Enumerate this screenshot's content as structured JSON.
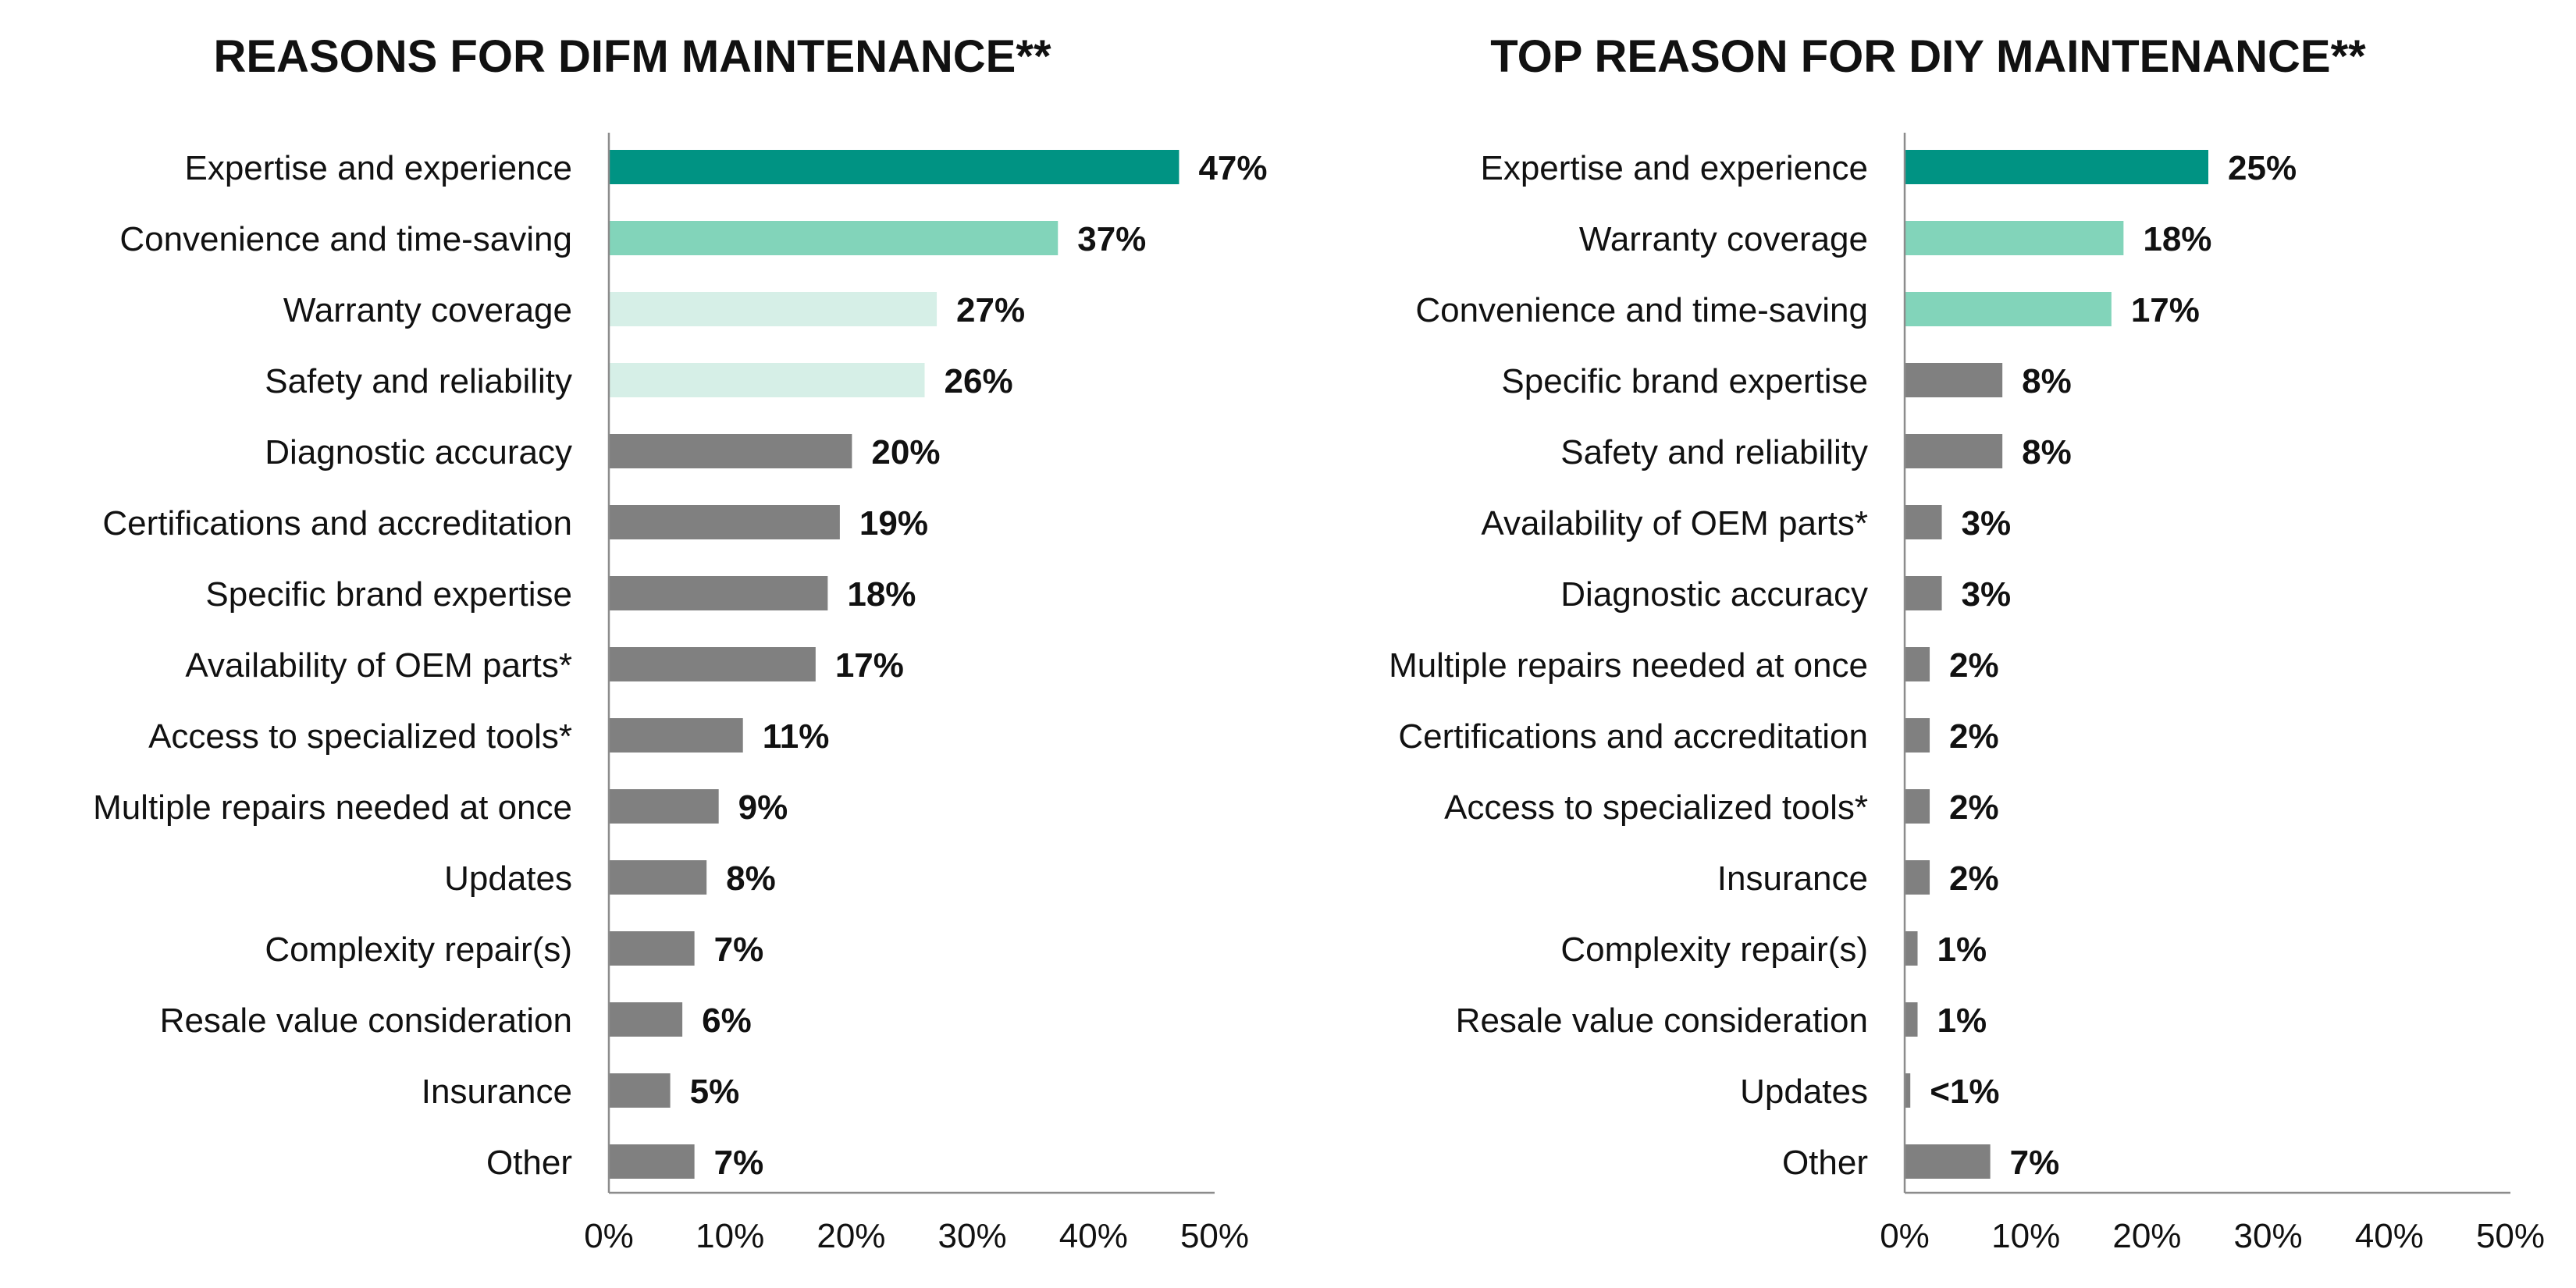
{
  "chart_data": [
    {
      "type": "bar",
      "orientation": "horizontal",
      "title": "REASONS FOR DIFM MAINTENANCE**",
      "categories": [
        "Expertise and experience",
        "Convenience and time-saving",
        "Warranty coverage",
        "Safety and reliability",
        "Diagnostic accuracy",
        "Certifications and accreditation",
        "Specific brand expertise",
        "Availability of OEM parts*",
        "Access to specialized tools*",
        "Multiple repairs needed at once",
        "Updates",
        "Complexity repair(s)",
        "Resale value consideration",
        "Insurance",
        "Other"
      ],
      "values": [
        47,
        37,
        27,
        26,
        20,
        19,
        18,
        17,
        11,
        9,
        8,
        7,
        6,
        5,
        7
      ],
      "data_labels": [
        "47%",
        "37%",
        "27%",
        "26%",
        "20%",
        "19%",
        "18%",
        "17%",
        "11%",
        "9%",
        "8%",
        "7%",
        "6%",
        "5%",
        "7%"
      ],
      "bar_colors": [
        "#009383",
        "#82d4ba",
        "#d6efe7",
        "#d6efe7",
        "#808080",
        "#808080",
        "#808080",
        "#808080",
        "#808080",
        "#808080",
        "#808080",
        "#808080",
        "#808080",
        "#808080",
        "#808080"
      ],
      "xlim": [
        0,
        50
      ],
      "xticks": [
        "0%",
        "10%",
        "20%",
        "30%",
        "40%",
        "50%"
      ],
      "grid": false
    },
    {
      "type": "bar",
      "orientation": "horizontal",
      "title": "TOP REASON FOR DIY MAINTENANCE**",
      "categories": [
        "Expertise and experience",
        "Warranty coverage",
        "Convenience and time-saving",
        "Specific brand expertise",
        "Safety and reliability",
        "Availability of OEM parts*",
        "Diagnostic accuracy",
        "Multiple repairs needed at once",
        "Certifications and accreditation",
        "Access to specialized tools*",
        "Insurance",
        "Complexity repair(s)",
        "Resale value consideration",
        "Updates",
        "Other"
      ],
      "values": [
        25,
        18,
        17,
        8,
        8,
        3,
        3,
        2,
        2,
        2,
        2,
        1,
        1,
        0.4,
        7
      ],
      "data_labels": [
        "25%",
        "18%",
        "17%",
        "8%",
        "8%",
        "3%",
        "3%",
        "2%",
        "2%",
        "2%",
        "2%",
        "1%",
        "1%",
        "<1%",
        "7%"
      ],
      "bar_colors": [
        "#009383",
        "#82d4ba",
        "#82d4ba",
        "#808080",
        "#808080",
        "#808080",
        "#808080",
        "#808080",
        "#808080",
        "#808080",
        "#808080",
        "#808080",
        "#808080",
        "#808080",
        "#808080"
      ],
      "xlim": [
        0,
        50
      ],
      "xticks": [
        "0%",
        "10%",
        "20%",
        "30%",
        "40%",
        "50%"
      ],
      "grid": false
    }
  ]
}
